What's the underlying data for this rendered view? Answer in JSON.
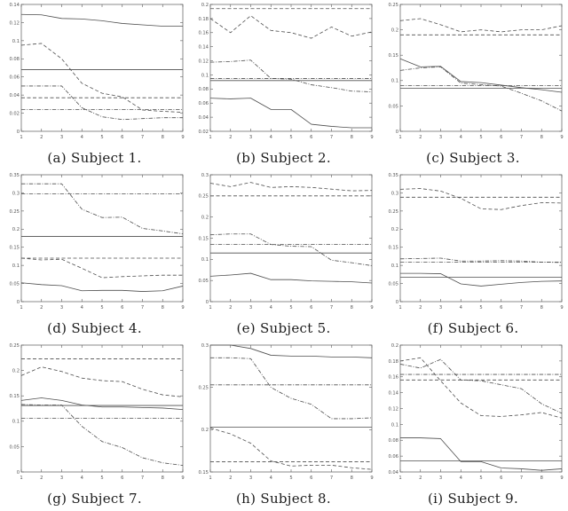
{
  "figure": {
    "description": "3x3 grid of grayscale line plots, one per subject",
    "line_color": "#4d4d4d",
    "axis_color": "#5a5a5a",
    "tick_label_color": "#555555",
    "background": "#ffffff"
  },
  "chart_data": [
    {
      "type": "line",
      "caption": "(a) Subject 1.",
      "x": [
        1,
        2,
        3,
        4,
        5,
        6,
        7,
        8,
        9
      ],
      "xticks": [
        1,
        2,
        3,
        4,
        5,
        6,
        7,
        8,
        9
      ],
      "ylim": [
        0,
        0.14
      ],
      "yticks": [
        0,
        0.02,
        0.04,
        0.06,
        0.08,
        0.1,
        0.12,
        0.14
      ],
      "series": [
        {
          "name": "solid-curve",
          "style": "solid",
          "values": [
            0.129,
            0.1285,
            0.1245,
            0.124,
            0.122,
            0.119,
            0.1175,
            0.116,
            0.116
          ]
        },
        {
          "name": "dashed-curve",
          "style": "dashed",
          "values": [
            0.095,
            0.097,
            0.08,
            0.053,
            0.042,
            0.038,
            0.0235,
            0.022,
            0.021
          ]
        },
        {
          "name": "dashdot-curve",
          "style": "dashdot",
          "values": [
            0.05,
            0.05,
            0.05,
            0.026,
            0.016,
            0.013,
            0.014,
            0.015,
            0.015
          ]
        }
      ],
      "hlines": [
        {
          "name": "solid-ref",
          "style": "solid",
          "y": 0.068
        },
        {
          "name": "dashed-ref",
          "style": "dashed",
          "y": 0.037
        },
        {
          "name": "dashdot-ref",
          "style": "dashdot",
          "y": 0.024
        }
      ]
    },
    {
      "type": "line",
      "caption": "(b) Subject 2.",
      "x": [
        1,
        2,
        3,
        4,
        5,
        6,
        7,
        8,
        9
      ],
      "xticks": [
        1,
        2,
        3,
        4,
        5,
        6,
        7,
        8,
        9
      ],
      "ylim": [
        0.02,
        0.2
      ],
      "yticks": [
        0.02,
        0.04,
        0.06,
        0.08,
        0.1,
        0.12,
        0.14,
        0.16,
        0.18,
        0.2
      ],
      "series": [
        {
          "name": "solid-curve",
          "style": "solid",
          "values": [
            0.067,
            0.066,
            0.067,
            0.051,
            0.051,
            0.03,
            0.027,
            0.025,
            0.025
          ]
        },
        {
          "name": "dashed-curve",
          "style": "dashed",
          "values": [
            0.18,
            0.16,
            0.184,
            0.163,
            0.16,
            0.152,
            0.168,
            0.155,
            0.161
          ]
        },
        {
          "name": "dashdot-curve",
          "style": "dashdot",
          "values": [
            0.118,
            0.119,
            0.121,
            0.095,
            0.094,
            0.086,
            0.082,
            0.077,
            0.076
          ]
        }
      ],
      "hlines": [
        {
          "name": "solid-ref",
          "style": "solid",
          "y": 0.092
        },
        {
          "name": "dashed-ref",
          "style": "dashed",
          "y": 0.194
        },
        {
          "name": "dashdot-ref",
          "style": "dashdot",
          "y": 0.095
        }
      ]
    },
    {
      "type": "line",
      "caption": "(c) Subject 3.",
      "x": [
        1,
        2,
        3,
        4,
        5,
        6,
        7,
        8,
        9
      ],
      "xticks": [
        1,
        2,
        3,
        4,
        5,
        6,
        7,
        8,
        9
      ],
      "ylim": [
        0,
        0.25
      ],
      "yticks": [
        0,
        0.05,
        0.1,
        0.15,
        0.2,
        0.25
      ],
      "series": [
        {
          "name": "solid-curve",
          "style": "solid",
          "values": [
            0.143,
            0.127,
            0.128,
            0.098,
            0.096,
            0.091,
            0.086,
            0.082,
            0.077
          ]
        },
        {
          "name": "dashed-curve",
          "style": "dashed",
          "values": [
            0.218,
            0.222,
            0.21,
            0.196,
            0.2,
            0.196,
            0.2,
            0.2,
            0.208
          ]
        },
        {
          "name": "dashdot-curve",
          "style": "dashdot",
          "values": [
            0.12,
            0.125,
            0.127,
            0.095,
            0.092,
            0.089,
            0.075,
            0.06,
            0.04
          ]
        }
      ],
      "hlines": [
        {
          "name": "solid-ref",
          "style": "solid",
          "y": 0.085
        },
        {
          "name": "dashed-ref",
          "style": "dashed",
          "y": 0.19
        },
        {
          "name": "dashdot-ref",
          "style": "dashdot",
          "y": 0.09
        }
      ]
    },
    {
      "type": "line",
      "caption": "(d) Subject 4.",
      "x": [
        1,
        2,
        3,
        4,
        5,
        6,
        7,
        8,
        9
      ],
      "xticks": [
        1,
        2,
        3,
        4,
        5,
        6,
        7,
        8,
        9
      ],
      "ylim": [
        0,
        0.35
      ],
      "yticks": [
        0,
        0.05,
        0.1,
        0.15,
        0.2,
        0.25,
        0.3,
        0.35
      ],
      "series": [
        {
          "name": "solid-curve",
          "style": "solid",
          "values": [
            0.052,
            0.047,
            0.044,
            0.03,
            0.031,
            0.031,
            0.028,
            0.03,
            0.043
          ]
        },
        {
          "name": "dashed-curve",
          "style": "dashed",
          "values": [
            0.12,
            0.115,
            0.117,
            0.092,
            0.066,
            0.069,
            0.071,
            0.073,
            0.073
          ]
        },
        {
          "name": "dashdot-curve",
          "style": "dashdot",
          "values": [
            0.325,
            0.325,
            0.325,
            0.255,
            0.232,
            0.233,
            0.202,
            0.195,
            0.187
          ]
        }
      ],
      "hlines": [
        {
          "name": "solid-ref",
          "style": "solid",
          "y": 0.18
        },
        {
          "name": "dashed-ref",
          "style": "dashed",
          "y": 0.12
        },
        {
          "name": "dashdot-ref",
          "style": "dashdot",
          "y": 0.297
        }
      ]
    },
    {
      "type": "line",
      "caption": "(e) Subject 5.",
      "x": [
        1,
        2,
        3,
        4,
        5,
        6,
        7,
        8,
        9
      ],
      "xticks": [
        1,
        2,
        3,
        4,
        5,
        6,
        7,
        8,
        9
      ],
      "ylim": [
        0,
        0.3
      ],
      "yticks": [
        0,
        0.05,
        0.1,
        0.15,
        0.2,
        0.25,
        0.3
      ],
      "series": [
        {
          "name": "solid-curve",
          "style": "solid",
          "values": [
            0.06,
            0.063,
            0.067,
            0.052,
            0.052,
            0.049,
            0.048,
            0.047,
            0.044
          ]
        },
        {
          "name": "dashed-curve",
          "style": "dashed",
          "values": [
            0.28,
            0.272,
            0.282,
            0.27,
            0.272,
            0.27,
            0.266,
            0.262,
            0.263
          ]
        },
        {
          "name": "dashdot-curve",
          "style": "dashdot",
          "values": [
            0.158,
            0.16,
            0.16,
            0.135,
            0.131,
            0.13,
            0.098,
            0.092,
            0.085
          ]
        }
      ],
      "hlines": [
        {
          "name": "solid-ref",
          "style": "solid",
          "y": 0.115
        },
        {
          "name": "dashed-ref",
          "style": "dashed",
          "y": 0.25
        },
        {
          "name": "dashdot-ref",
          "style": "dashdot",
          "y": 0.135
        }
      ]
    },
    {
      "type": "line",
      "caption": "(f) Subject 6.",
      "x": [
        1,
        2,
        3,
        4,
        5,
        6,
        7,
        8,
        9
      ],
      "xticks": [
        1,
        2,
        3,
        4,
        5,
        6,
        7,
        8,
        9
      ],
      "ylim": [
        0,
        0.35
      ],
      "yticks": [
        0,
        0.05,
        0.1,
        0.15,
        0.2,
        0.25,
        0.3,
        0.35
      ],
      "series": [
        {
          "name": "solid-curve",
          "style": "solid",
          "values": [
            0.078,
            0.078,
            0.077,
            0.049,
            0.043,
            0.048,
            0.053,
            0.056,
            0.057
          ]
        },
        {
          "name": "dashed-curve",
          "style": "dashed",
          "values": [
            0.31,
            0.312,
            0.305,
            0.285,
            0.256,
            0.254,
            0.265,
            0.273,
            0.272
          ]
        },
        {
          "name": "dashdot-curve",
          "style": "dashdot",
          "values": [
            0.118,
            0.119,
            0.12,
            0.112,
            0.112,
            0.113,
            0.112,
            0.109,
            0.108
          ]
        }
      ],
      "hlines": [
        {
          "name": "solid-ref",
          "style": "solid",
          "y": 0.067
        },
        {
          "name": "dashed-ref",
          "style": "dashed",
          "y": 0.288
        },
        {
          "name": "dashdot-ref",
          "style": "dashdot",
          "y": 0.109
        }
      ]
    },
    {
      "type": "line",
      "caption": "(g) Subject 7.",
      "x": [
        1,
        2,
        3,
        4,
        5,
        6,
        7,
        8,
        9
      ],
      "xticks": [
        1,
        2,
        3,
        4,
        5,
        6,
        7,
        8,
        9
      ],
      "ylim": [
        0,
        0.25
      ],
      "yticks": [
        0,
        0.05,
        0.1,
        0.15,
        0.2,
        0.25
      ],
      "series": [
        {
          "name": "solid-curve",
          "style": "solid",
          "values": [
            0.141,
            0.146,
            0.141,
            0.132,
            0.128,
            0.128,
            0.127,
            0.126,
            0.123
          ]
        },
        {
          "name": "dashed-curve",
          "style": "dashed",
          "values": [
            0.19,
            0.207,
            0.198,
            0.185,
            0.18,
            0.178,
            0.163,
            0.152,
            0.148
          ]
        },
        {
          "name": "dashdot-curve",
          "style": "dashdot",
          "values": [
            0.133,
            0.132,
            0.132,
            0.09,
            0.06,
            0.048,
            0.028,
            0.018,
            0.013
          ]
        }
      ],
      "hlines": [
        {
          "name": "solid-ref",
          "style": "solid",
          "y": 0.131
        },
        {
          "name": "dashed-ref",
          "style": "dashed",
          "y": 0.223
        },
        {
          "name": "dashdot-ref",
          "style": "dashdot",
          "y": 0.106
        }
      ]
    },
    {
      "type": "line",
      "caption": "(h) Subject 8.",
      "x": [
        1,
        2,
        3,
        4,
        5,
        6,
        7,
        8,
        9
      ],
      "xticks": [
        1,
        2,
        3,
        4,
        5,
        6,
        7,
        8,
        9
      ],
      "ylim": [
        0.15,
        0.3
      ],
      "yticks": [
        0.15,
        0.2,
        0.25,
        0.3
      ],
      "series": [
        {
          "name": "solid-curve",
          "style": "solid",
          "values": [
            0.3,
            0.3,
            0.296,
            0.288,
            0.287,
            0.287,
            0.286,
            0.286,
            0.285
          ]
        },
        {
          "name": "dashed-curve",
          "style": "dashed",
          "values": [
            0.202,
            0.195,
            0.184,
            0.163,
            0.157,
            0.158,
            0.158,
            0.155,
            0.153
          ]
        },
        {
          "name": "dashdot-curve",
          "style": "dashdot",
          "values": [
            0.285,
            0.285,
            0.284,
            0.25,
            0.237,
            0.23,
            0.213,
            0.213,
            0.214
          ]
        }
      ],
      "hlines": [
        {
          "name": "solid-ref",
          "style": "solid",
          "y": 0.203
        },
        {
          "name": "dashed-ref",
          "style": "dashed",
          "y": 0.162
        },
        {
          "name": "dashdot-ref",
          "style": "dashdot",
          "y": 0.253
        }
      ]
    },
    {
      "type": "line",
      "caption": "(i) Subject 9.",
      "x": [
        1,
        2,
        3,
        4,
        5,
        6,
        7,
        8,
        9
      ],
      "xticks": [
        1,
        2,
        3,
        4,
        5,
        6,
        7,
        8,
        9
      ],
      "ylim": [
        0.04,
        0.2
      ],
      "yticks": [
        0.04,
        0.06,
        0.08,
        0.1,
        0.12,
        0.14,
        0.16,
        0.18,
        0.2
      ],
      "series": [
        {
          "name": "solid-curve",
          "style": "solid",
          "values": [
            0.083,
            0.083,
            0.082,
            0.053,
            0.053,
            0.045,
            0.044,
            0.042,
            0.044
          ]
        },
        {
          "name": "dashed-curve",
          "style": "dashed",
          "values": [
            0.18,
            0.184,
            0.155,
            0.127,
            0.111,
            0.11,
            0.112,
            0.115,
            0.108
          ]
        },
        {
          "name": "dashdot-curve",
          "style": "dashdot",
          "values": [
            0.176,
            0.171,
            0.182,
            0.156,
            0.155,
            0.15,
            0.145,
            0.126,
            0.114
          ]
        }
      ],
      "hlines": [
        {
          "name": "solid-ref",
          "style": "solid",
          "y": 0.054
        },
        {
          "name": "dashed-ref",
          "style": "dashed",
          "y": 0.156
        },
        {
          "name": "dashdot-ref",
          "style": "dashdot",
          "y": 0.163
        }
      ]
    }
  ]
}
